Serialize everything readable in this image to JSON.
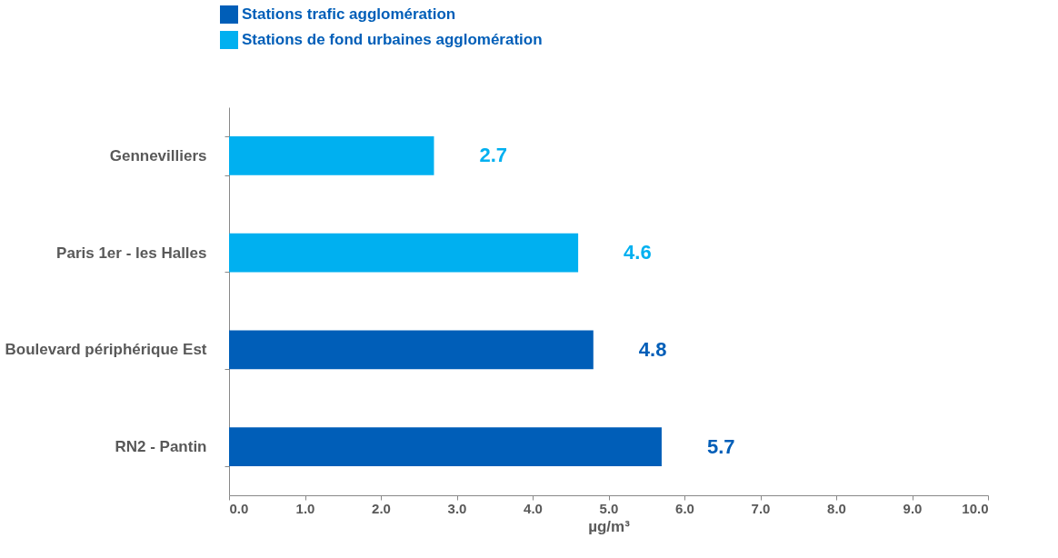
{
  "chart_data": {
    "type": "bar",
    "orientation": "horizontal",
    "xlabel": "µg/m³",
    "categories": [
      "Gennevilliers",
      "Paris 1er - les Halles",
      "Boulevard périphérique Est",
      "RN2 - Pantin"
    ],
    "series": [
      {
        "name": "Stations trafic agglomération",
        "color": "#005eb8",
        "values": [
          null,
          null,
          4.8,
          5.7
        ]
      },
      {
        "name": "Stations de fond urbaines agglomération",
        "color": "#00b0f0",
        "values": [
          2.7,
          4.6,
          null,
          null
        ]
      }
    ],
    "xlim": [
      0,
      10
    ],
    "xticks": [
      {
        "value": 0,
        "label": "0.0"
      },
      {
        "value": 1,
        "label": "1.0"
      },
      {
        "value": 2,
        "label": "2.0"
      },
      {
        "value": 3,
        "label": "3.0"
      },
      {
        "value": 4,
        "label": "4.0"
      },
      {
        "value": 5,
        "label": "5.0"
      },
      {
        "value": 6,
        "label": "6.0"
      },
      {
        "value": 7,
        "label": "7.0"
      },
      {
        "value": 8,
        "label": "8.0"
      },
      {
        "value": 9,
        "label": "9.0"
      },
      {
        "value": 10,
        "label": "10.0"
      }
    ],
    "data_labels": true,
    "grid": false,
    "legend": "top"
  }
}
